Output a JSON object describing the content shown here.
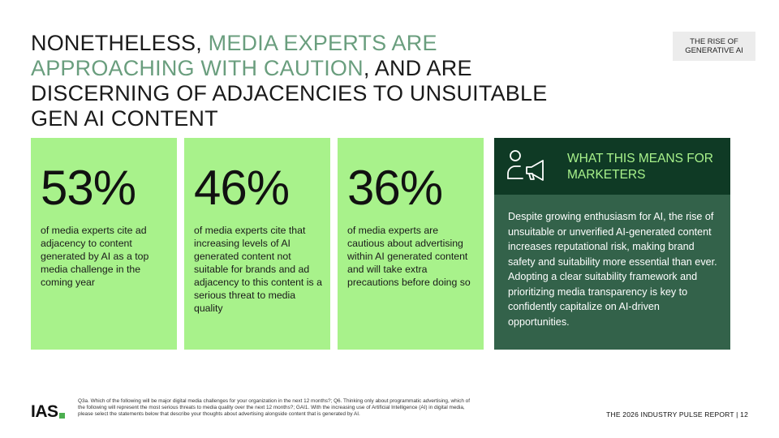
{
  "title": {
    "part1": "NONETHELESS, ",
    "accent": "MEDIA EXPERTS ARE APPROACHING WITH CAUTION",
    "part2": ", AND ARE DISCERNING OF ADJACENCIES TO UNSUITABLE GEN AI CONTENT"
  },
  "tag": {
    "line1": "THE RISE OF",
    "line2": "GENERATIVE AI"
  },
  "stats": [
    {
      "value": "53%",
      "text": "of media experts cite ad adjacency to content generated by AI as a top media challenge in the coming year"
    },
    {
      "value": "46%",
      "text": "of media experts cite that increasing levels of AI generated content not suitable for brands and ad adjacency to this content is a serious threat to media quality"
    },
    {
      "value": "36%",
      "text": "of media experts are cautious about advertising within AI generated content and will take extra precautions before doing so"
    }
  ],
  "panel": {
    "icon": "megaphone-person-icon",
    "title": "WHAT THIS MEANS FOR MARKETERS",
    "body": "Despite growing enthusiasm for AI, the rise of unsuitable or unverified AI-generated content increases reputational risk, making brand safety and suitability more essential than ever. Adopting a clear suitability framework and prioritizing media transparency is key to confidently capitalize on AI-driven opportunities."
  },
  "logo": {
    "text": "IAS"
  },
  "footnote": "Q3a. Which of the following will be major digital media challenges for your organization in the next 12 months?; Q6. Thinking only about programmatic advertising, which of the following will represent the most serious threats to media quality over the next 12 months?; GAI1. With the increasing use of Artificial Intelligence (AI) in digital media, please select the statements below that describe your thoughts about advertising alongside content that is generated by AI.",
  "footer": {
    "report": "THE 2026 INDUSTRY PULSE REPORT | 12"
  },
  "colors": {
    "accent_green": "#6a9e7e",
    "card_green": "#a8f28b",
    "panel_dark": "#0f3a25",
    "panel_mid": "#33624a"
  }
}
